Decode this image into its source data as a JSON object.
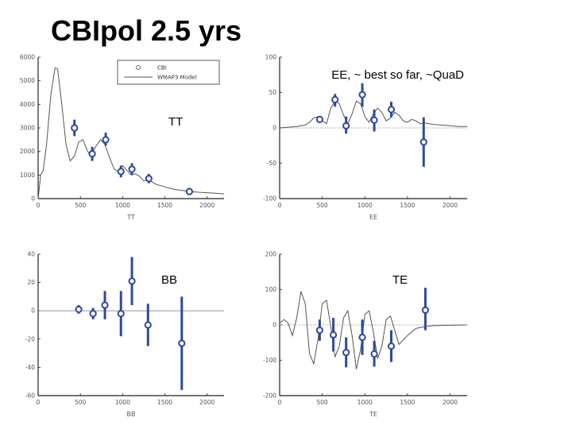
{
  "title": "CBIpol 2.5 yrs",
  "colors": {
    "data": "#2f4a9c",
    "model": "#555555",
    "zero_line": "#888888",
    "axis": "#222222"
  },
  "chart_data": [
    {
      "id": "tt",
      "type": "line",
      "overlay_label": "TT",
      "xlabel": "TT",
      "xlim": [
        0,
        2200
      ],
      "ylim": [
        0,
        6000
      ],
      "xticks": [
        0,
        500,
        1000,
        1500,
        2000
      ],
      "yticks": [
        0,
        1000,
        2000,
        3000,
        4000,
        5000,
        6000
      ],
      "zero_line": false,
      "legend": {
        "placement": "top-right",
        "entries": [
          "CBI",
          "WMAP3 Model"
        ]
      },
      "series": [
        {
          "name": "CBI",
          "kind": "errorbar",
          "points": [
            {
              "x": 430,
              "y": 3000,
              "lo": 2650,
              "hi": 3350
            },
            {
              "x": 640,
              "y": 1900,
              "lo": 1600,
              "hi": 2200
            },
            {
              "x": 800,
              "y": 2500,
              "lo": 2250,
              "hi": 2800
            },
            {
              "x": 980,
              "y": 1150,
              "lo": 900,
              "hi": 1400
            },
            {
              "x": 1110,
              "y": 1250,
              "lo": 1000,
              "hi": 1500
            },
            {
              "x": 1310,
              "y": 850,
              "lo": 650,
              "hi": 1050
            },
            {
              "x": 1790,
              "y": 300,
              "lo": 150,
              "hi": 450
            }
          ]
        },
        {
          "name": "WMAP3 Model",
          "kind": "line",
          "x": [
            0,
            30,
            60,
            100,
            150,
            200,
            230,
            280,
            330,
            380,
            430,
            480,
            530,
            580,
            620,
            680,
            740,
            790,
            850,
            900,
            950,
            1000,
            1050,
            1100,
            1150,
            1200,
            1250,
            1300,
            1350,
            1400,
            1500,
            1600,
            1700,
            1800,
            1900,
            2000,
            2100,
            2200
          ],
          "y": [
            0,
            1000,
            1200,
            2300,
            4400,
            5550,
            5500,
            4000,
            2300,
            1600,
            1800,
            2400,
            2500,
            2050,
            1800,
            2200,
            2500,
            2300,
            1700,
            1250,
            1150,
            1400,
            1200,
            1000,
            1050,
            950,
            750,
            800,
            700,
            600,
            500,
            400,
            350,
            300,
            270,
            250,
            230,
            200
          ]
        }
      ]
    },
    {
      "id": "ee",
      "type": "line",
      "overlay_label": "EE, ~ best so far, ~QuaD",
      "xlabel": "EE",
      "xlim": [
        0,
        2200
      ],
      "ylim": [
        -100,
        100
      ],
      "xticks": [
        0,
        500,
        1000,
        1500,
        2000
      ],
      "yticks": [
        -100,
        -50,
        0,
        50,
        100
      ],
      "zero_line": true,
      "series": [
        {
          "name": "CBI",
          "kind": "errorbar",
          "points": [
            {
              "x": 470,
              "y": 12,
              "lo": 8,
              "hi": 16
            },
            {
              "x": 650,
              "y": 40,
              "lo": 30,
              "hi": 48
            },
            {
              "x": 780,
              "y": 3,
              "lo": -8,
              "hi": 16
            },
            {
              "x": 970,
              "y": 47,
              "lo": 30,
              "hi": 63
            },
            {
              "x": 1110,
              "y": 11,
              "lo": -5,
              "hi": 26
            },
            {
              "x": 1310,
              "y": 26,
              "lo": 15,
              "hi": 37
            },
            {
              "x": 1690,
              "y": -20,
              "lo": -55,
              "hi": 15
            }
          ]
        },
        {
          "name": "model",
          "kind": "line",
          "x": [
            0,
            100,
            200,
            300,
            350,
            400,
            450,
            500,
            550,
            600,
            650,
            700,
            750,
            800,
            850,
            900,
            950,
            1000,
            1050,
            1100,
            1150,
            1200,
            1250,
            1300,
            1350,
            1400,
            1450,
            1500,
            1550,
            1600,
            1650,
            1700,
            1750,
            1800,
            1900,
            2000,
            2100,
            2200
          ],
          "y": [
            0,
            1,
            2,
            4,
            8,
            14,
            16,
            10,
            6,
            28,
            38,
            34,
            18,
            6,
            20,
            38,
            34,
            16,
            8,
            20,
            28,
            22,
            10,
            14,
            22,
            18,
            10,
            8,
            12,
            10,
            6,
            7,
            6,
            5,
            4,
            3,
            2,
            2
          ]
        }
      ]
    },
    {
      "id": "bb",
      "type": "scatter",
      "overlay_label": "BB",
      "xlabel": "BB",
      "xlim": [
        0,
        2200
      ],
      "ylim": [
        -60,
        40
      ],
      "xticks": [
        0,
        500,
        1000,
        1500,
        2000
      ],
      "yticks": [
        -60,
        -40,
        -20,
        0,
        20,
        40
      ],
      "zero_line": true,
      "series": [
        {
          "name": "CBI",
          "kind": "errorbar",
          "points": [
            {
              "x": 480,
              "y": 1,
              "lo": -2,
              "hi": 4
            },
            {
              "x": 650,
              "y": -2,
              "lo": -6,
              "hi": 2
            },
            {
              "x": 790,
              "y": 4,
              "lo": -6,
              "hi": 14
            },
            {
              "x": 980,
              "y": -2,
              "lo": -18,
              "hi": 14
            },
            {
              "x": 1110,
              "y": 21,
              "lo": 4,
              "hi": 38
            },
            {
              "x": 1300,
              "y": -10,
              "lo": -25,
              "hi": 5
            },
            {
              "x": 1700,
              "y": -23,
              "lo": -56,
              "hi": 10
            }
          ]
        }
      ]
    },
    {
      "id": "te",
      "type": "line",
      "overlay_label": "TE",
      "xlabel": "TE",
      "xlim": [
        0,
        2200
      ],
      "ylim": [
        -200,
        200
      ],
      "xticks": [
        0,
        500,
        1000,
        1500,
        2000
      ],
      "yticks": [
        -200,
        -100,
        0,
        100,
        200
      ],
      "zero_line": true,
      "series": [
        {
          "name": "CBI",
          "kind": "errorbar",
          "points": [
            {
              "x": 470,
              "y": -15,
              "lo": -45,
              "hi": 15
            },
            {
              "x": 630,
              "y": -28,
              "lo": -75,
              "hi": 20
            },
            {
              "x": 780,
              "y": -78,
              "lo": -120,
              "hi": -35
            },
            {
              "x": 970,
              "y": -35,
              "lo": -85,
              "hi": 15
            },
            {
              "x": 1110,
              "y": -82,
              "lo": -118,
              "hi": -45
            },
            {
              "x": 1310,
              "y": -60,
              "lo": -105,
              "hi": -15
            },
            {
              "x": 1710,
              "y": 42,
              "lo": -15,
              "hi": 105
            }
          ]
        },
        {
          "name": "model",
          "kind": "line",
          "x": [
            0,
            50,
            100,
            150,
            200,
            250,
            300,
            350,
            400,
            450,
            500,
            550,
            600,
            650,
            700,
            750,
            800,
            850,
            900,
            950,
            1000,
            1050,
            1100,
            1150,
            1200,
            1250,
            1300,
            1350,
            1400,
            1500,
            1600,
            1700,
            1800,
            2000,
            2200
          ],
          "y": [
            5,
            15,
            5,
            -30,
            20,
            95,
            60,
            -80,
            -110,
            -40,
            60,
            70,
            -5,
            -90,
            -60,
            20,
            40,
            -30,
            -125,
            -70,
            30,
            40,
            -20,
            -95,
            -60,
            15,
            25,
            -15,
            -55,
            -30,
            -10,
            -5,
            -2,
            -1,
            0
          ]
        }
      ]
    }
  ]
}
